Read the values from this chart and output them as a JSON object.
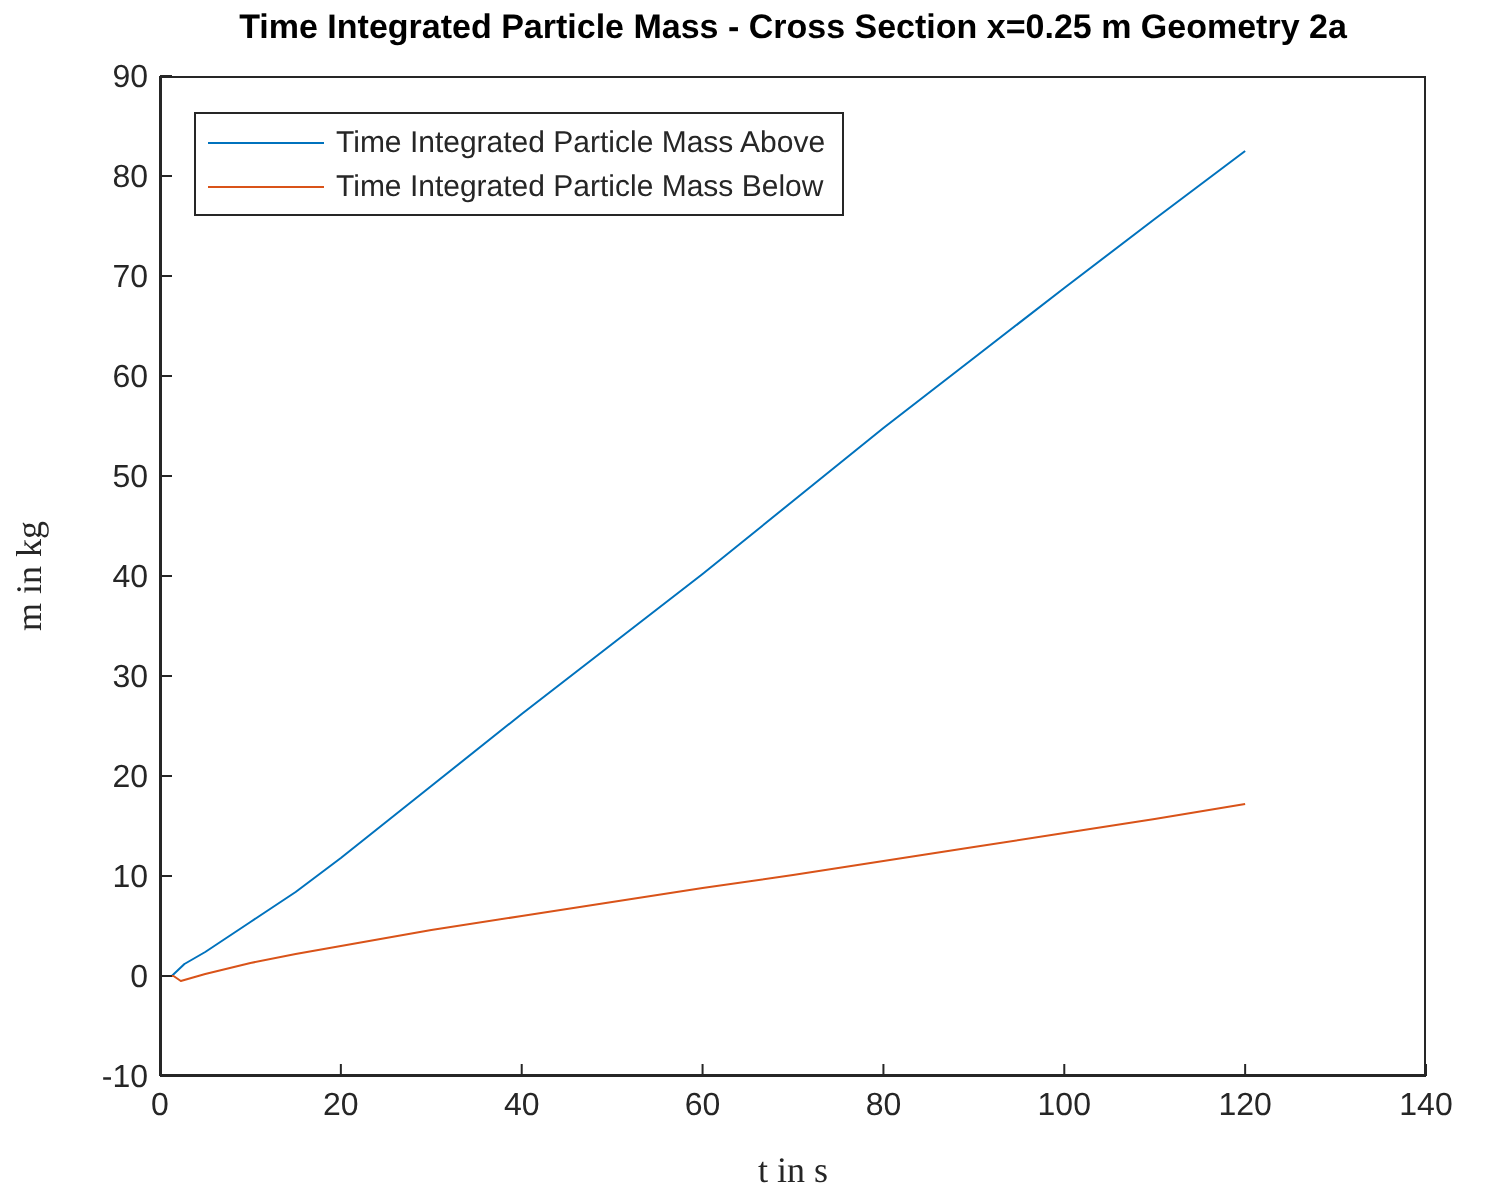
{
  "chart_data": {
    "type": "line",
    "title": "Time Integrated Particle Mass - Cross Section x=0.25 m Geometry 2a",
    "xlabel": "t in s",
    "ylabel": "m in kg",
    "series": [
      {
        "name": "Time Integrated Particle Mass Above",
        "color": "#0072bd",
        "x": [
          1.3,
          2.7,
          5,
          10,
          15,
          20,
          30,
          40,
          50,
          60,
          70,
          80,
          90,
          100,
          110,
          120
        ],
        "values": [
          0,
          1.2,
          2.4,
          5.4,
          8.4,
          11.8,
          19,
          26.2,
          33.2,
          40.2,
          47.5,
          54.8,
          61.8,
          68.8,
          75.7,
          82.5
        ]
      },
      {
        "name": "Time Integrated Particle Mass Below",
        "color": "#d95319",
        "x": [
          0.5,
          1.5,
          2.3,
          5,
          10,
          15,
          20,
          30,
          40,
          50,
          60,
          70,
          80,
          90,
          100,
          110,
          120
        ],
        "values": [
          0,
          0,
          -0.5,
          0.2,
          1.3,
          2.2,
          3,
          4.6,
          6,
          7.4,
          8.8,
          10.1,
          11.5,
          12.9,
          14.3,
          15.7,
          17.2
        ]
      }
    ],
    "xlim": [
      0,
      140
    ],
    "xticks": [
      0,
      20,
      40,
      60,
      80,
      100,
      120,
      140
    ],
    "ylim": [
      -10,
      90
    ],
    "yticks": [
      -10,
      0,
      10,
      20,
      30,
      40,
      50,
      60,
      70,
      80,
      90
    ],
    "legend": "top left",
    "marker": "none",
    "line_style": "solid"
  }
}
